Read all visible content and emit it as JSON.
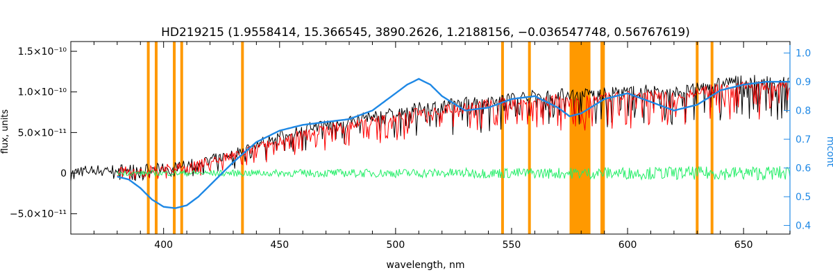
{
  "chart_data": {
    "type": "line",
    "title": "HD219215   (1.9558414, 15.366545, 3890.2626, 1.2188156, −0.036547748, 0.56767619)",
    "xlabel": "wavelength, nm",
    "ylabel_left": "flux, units",
    "ylabel_right": "mcont",
    "xlim": [
      360,
      670
    ],
    "ylim_left": [
      -7.5e-11,
      1.62e-10
    ],
    "ylim_right": [
      0.37,
      1.04
    ],
    "x_ticks": [
      {
        "v": 400,
        "label": "400"
      },
      {
        "v": 450,
        "label": "450"
      },
      {
        "v": 500,
        "label": "500"
      },
      {
        "v": 550,
        "label": "550"
      },
      {
        "v": 600,
        "label": "600"
      },
      {
        "v": 650,
        "label": "650"
      }
    ],
    "y_ticks_left": [
      {
        "v": 1.5e-10,
        "label": "1.5×10⁻¹⁰"
      },
      {
        "v": 1e-10,
        "label": "1.0×10⁻¹⁰"
      },
      {
        "v": 5e-11,
        "label": "5.0×10⁻¹¹"
      },
      {
        "v": 0,
        "label": "0"
      },
      {
        "v": -5e-11,
        "label": "−5.0×10⁻¹¹"
      }
    ],
    "y_ticks_right": [
      {
        "v": 1.0,
        "label": "1.0"
      },
      {
        "v": 0.9,
        "label": "0.9"
      },
      {
        "v": 0.8,
        "label": "0.8"
      },
      {
        "v": 0.7,
        "label": "0.7"
      },
      {
        "v": 0.6,
        "label": "0.6"
      },
      {
        "v": 0.5,
        "label": "0.5"
      },
      {
        "v": 0.4,
        "label": "0.4"
      }
    ],
    "masked_lines_nm": [
      393.4,
      396.8,
      404.6,
      407.8,
      434.0,
      546.1,
      557.7,
      588.9,
      589.6,
      630.0,
      636.4
    ],
    "masked_band_nm": [
      575,
      584
    ],
    "series": [
      {
        "name": "observed",
        "color": "#000000",
        "axis": "left",
        "x": [
          360,
          380,
          390,
          400,
          410,
          420,
          430,
          440,
          450,
          460,
          470,
          480,
          490,
          500,
          510,
          520,
          530,
          540,
          550,
          560,
          570,
          580,
          590,
          600,
          610,
          620,
          630,
          640,
          650,
          660,
          670
        ],
        "y": [
          3e-12,
          5e-12,
          5e-12,
          6e-12,
          1e-11,
          1.6e-11,
          2.4e-11,
          3.6e-11,
          4.6e-11,
          5.4e-11,
          6.1e-11,
          6.5e-11,
          7e-11,
          7.5e-11,
          8.1e-11,
          8.4e-11,
          8.8e-11,
          9.1e-11,
          9.4e-11,
          9.6e-11,
          9.8e-11,
          9.8e-11,
          9.9e-11,
          1.01e-10,
          1.03e-10,
          1e-10,
          1.05e-10,
          1.12e-10,
          1.15e-10,
          1.14e-10,
          1.12e-10
        ]
      },
      {
        "name": "model",
        "color": "#ff0000",
        "axis": "left",
        "x": [
          380,
          390,
          400,
          410,
          420,
          430,
          440,
          450,
          460,
          470,
          480,
          490,
          500,
          510,
          520,
          530,
          540,
          550,
          560,
          570,
          580,
          590,
          600,
          610,
          620,
          630,
          640,
          650,
          660,
          670
        ],
        "y": [
          2e-12,
          3e-12,
          5e-12,
          9e-12,
          1.4e-11,
          2.1e-11,
          3.1e-11,
          4e-11,
          4.8e-11,
          5.5e-11,
          5.9e-11,
          6.4e-11,
          6.9e-11,
          7.5e-11,
          7.8e-11,
          8.2e-11,
          8.5e-11,
          8.8e-11,
          9e-11,
          9.2e-11,
          9.2e-11,
          9.3e-11,
          9.5e-11,
          9.7e-11,
          9.5e-11,
          9.9e-11,
          1.06e-10,
          1.09e-10,
          1.08e-10,
          1.06e-10
        ]
      },
      {
        "name": "residual",
        "color": "#22ee66",
        "axis": "left",
        "x": [
          380,
          670
        ],
        "y": [
          0,
          0
        ],
        "scatter": 6e-12
      },
      {
        "name": "continuum",
        "color": "#1e88e5",
        "axis": "right",
        "x": [
          380,
          385,
          390,
          395,
          400,
          405,
          410,
          415,
          420,
          425,
          430,
          440,
          450,
          460,
          470,
          480,
          490,
          500,
          505,
          510,
          515,
          520,
          530,
          540,
          550,
          560,
          570,
          575,
          580,
          590,
          600,
          610,
          620,
          630,
          640,
          650,
          660,
          670
        ],
        "y": [
          0.57,
          0.56,
          0.53,
          0.49,
          0.465,
          0.46,
          0.47,
          0.5,
          0.54,
          0.58,
          0.62,
          0.69,
          0.73,
          0.75,
          0.76,
          0.77,
          0.8,
          0.86,
          0.89,
          0.91,
          0.89,
          0.85,
          0.8,
          0.81,
          0.84,
          0.85,
          0.81,
          0.78,
          0.79,
          0.84,
          0.86,
          0.83,
          0.8,
          0.82,
          0.87,
          0.89,
          0.9,
          0.9
        ]
      }
    ]
  }
}
